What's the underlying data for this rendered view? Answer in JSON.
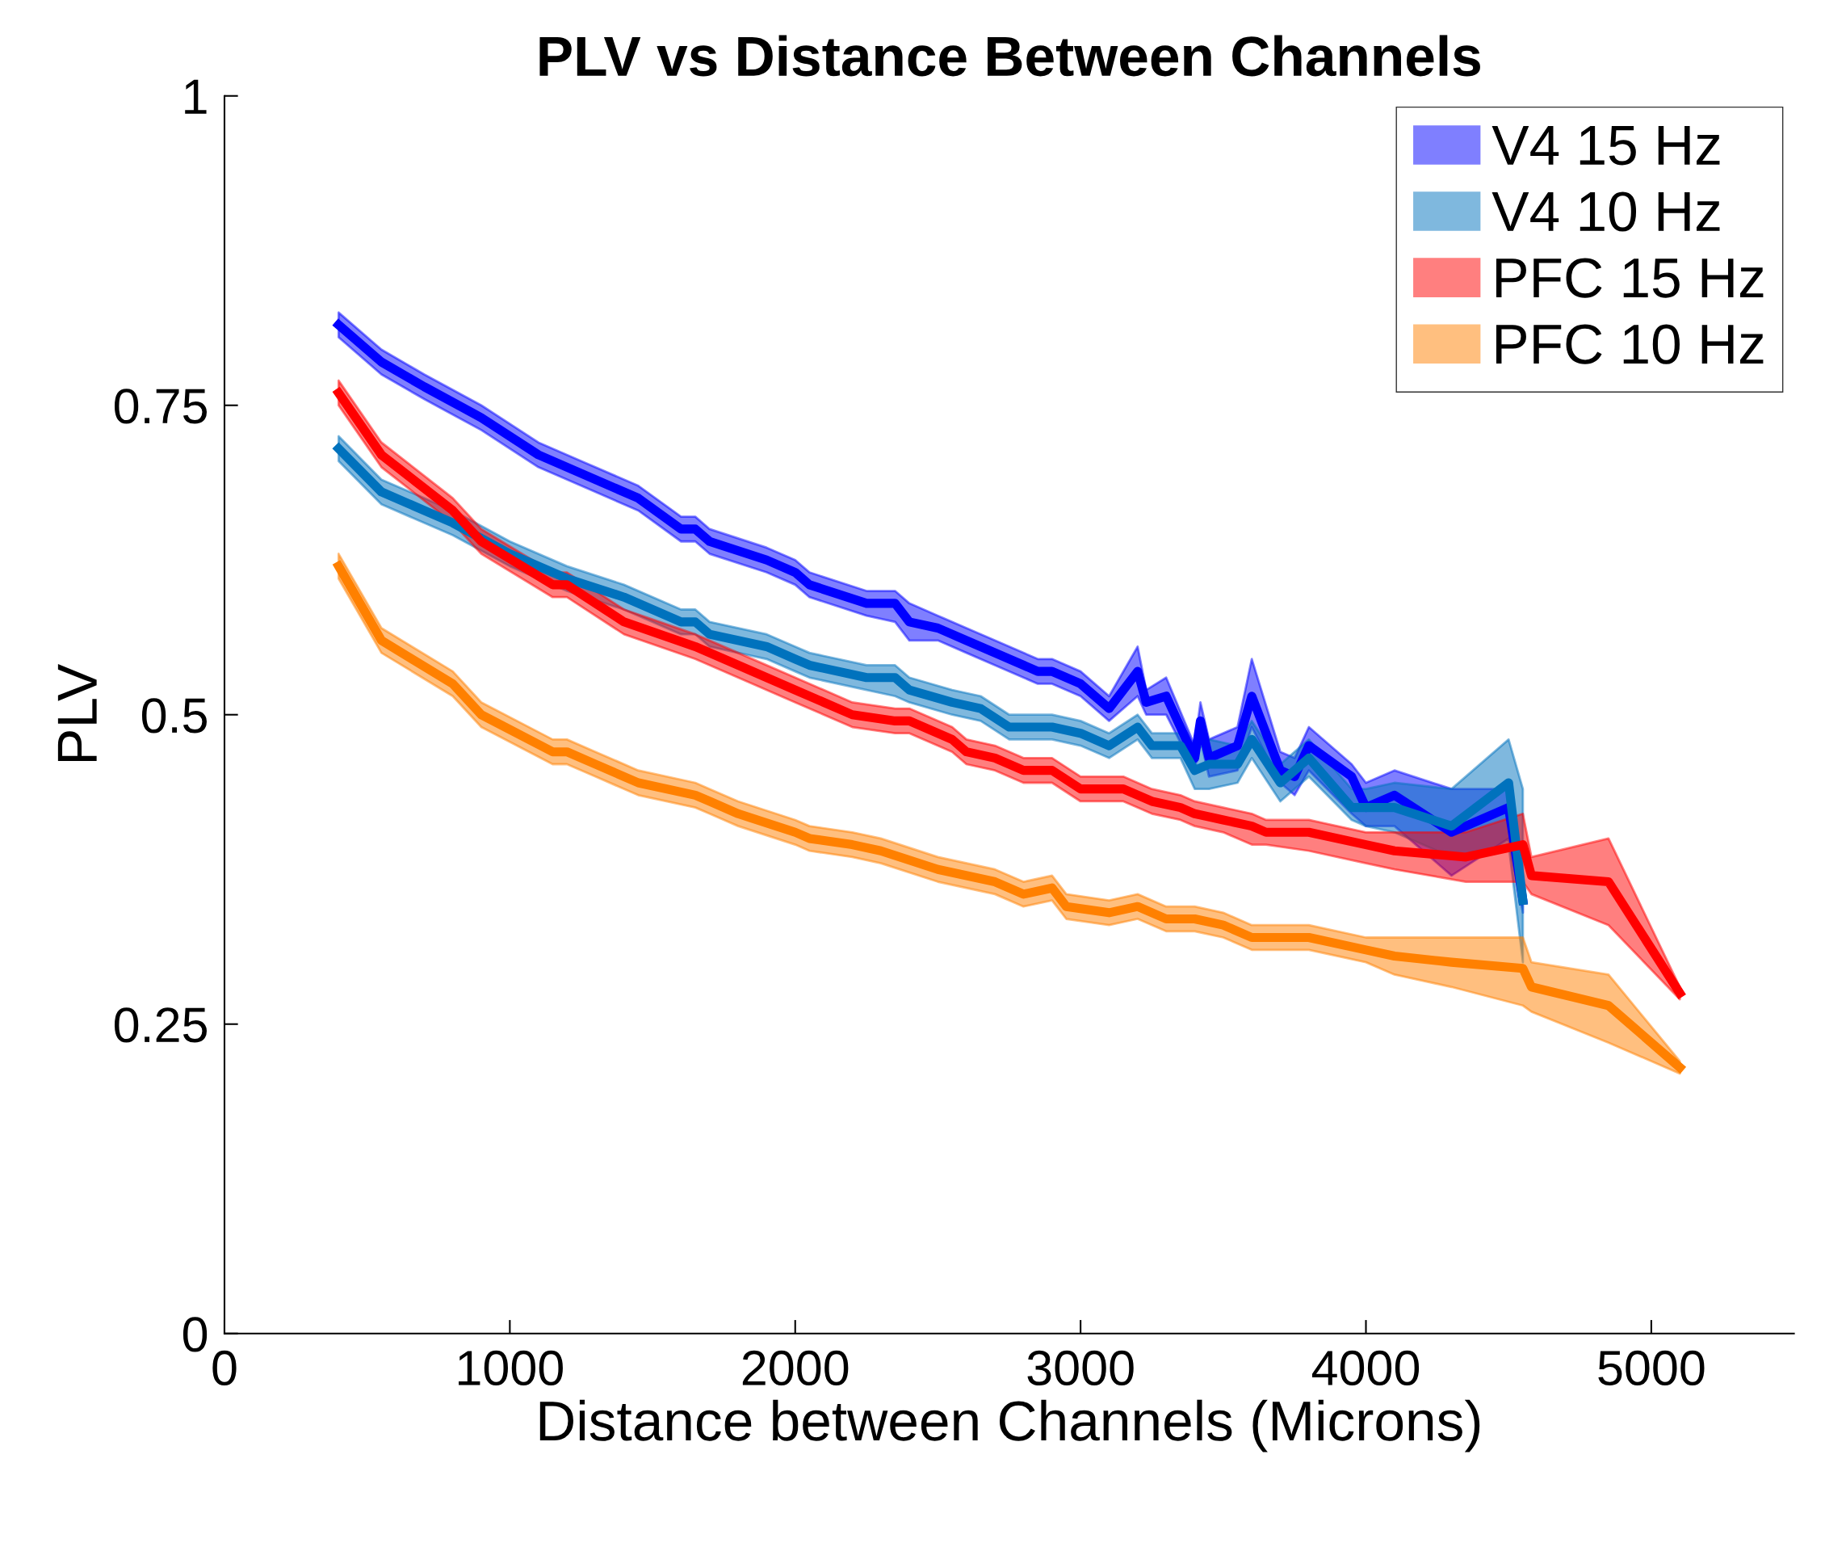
{
  "chart_data": {
    "type": "line",
    "title": "PLV vs Distance Between Channels",
    "xlabel": "Distance between Channels (Microns)",
    "ylabel": "PLV",
    "xlim": [
      0,
      5500
    ],
    "xticks": [
      0,
      1000,
      2000,
      3000,
      4000,
      5000
    ],
    "ylim": [
      0,
      1
    ],
    "yticks": [
      0,
      0.25,
      0.5,
      0.75,
      1
    ],
    "grid": false,
    "legend": "top right",
    "line_style": "solid",
    "marker": "none",
    "series": [
      {
        "name": "V4 15 Hz",
        "color": "#0000ff",
        "x": [
          400,
          550,
          700,
          900,
          1100,
          1250,
          1450,
          1600,
          1650,
          1700,
          1900,
          2000,
          2050,
          2250,
          2350,
          2400,
          2500,
          2600,
          2700,
          2850,
          2900,
          3000,
          3100,
          3200,
          3230,
          3300,
          3400,
          3420,
          3450,
          3550,
          3600,
          3700,
          3750,
          3800,
          3950,
          4000,
          4100,
          4300,
          4500,
          4550
        ],
        "values": [
          0.815,
          0.785,
          0.765,
          0.74,
          0.71,
          0.695,
          0.675,
          0.65,
          0.65,
          0.64,
          0.625,
          0.615,
          0.605,
          0.59,
          0.59,
          0.575,
          0.57,
          0.56,
          0.55,
          0.535,
          0.535,
          0.525,
          0.505,
          0.535,
          0.51,
          0.515,
          0.465,
          0.495,
          0.465,
          0.475,
          0.515,
          0.455,
          0.45,
          0.475,
          0.45,
          0.425,
          0.435,
          0.405,
          0.425,
          0.35
        ],
        "lower": [
          0.805,
          0.775,
          0.755,
          0.73,
          0.7,
          0.685,
          0.665,
          0.64,
          0.64,
          0.63,
          0.615,
          0.605,
          0.595,
          0.58,
          0.575,
          0.56,
          0.56,
          0.55,
          0.54,
          0.525,
          0.525,
          0.515,
          0.495,
          0.515,
          0.5,
          0.5,
          0.455,
          0.48,
          0.45,
          0.455,
          0.49,
          0.445,
          0.435,
          0.455,
          0.42,
          0.41,
          0.41,
          0.37,
          0.4,
          0.34
        ],
        "upper": [
          0.825,
          0.795,
          0.775,
          0.75,
          0.72,
          0.705,
          0.685,
          0.66,
          0.66,
          0.65,
          0.635,
          0.625,
          0.615,
          0.6,
          0.6,
          0.59,
          0.58,
          0.57,
          0.56,
          0.545,
          0.545,
          0.535,
          0.515,
          0.555,
          0.52,
          0.53,
          0.475,
          0.51,
          0.48,
          0.49,
          0.545,
          0.47,
          0.465,
          0.49,
          0.46,
          0.445,
          0.455,
          0.44,
          0.44,
          0.36
        ]
      },
      {
        "name": "V4 10 Hz",
        "color": "#0072bd",
        "x": [
          400,
          550,
          800,
          1000,
          1200,
          1400,
          1600,
          1650,
          1700,
          1900,
          2000,
          2050,
          2250,
          2350,
          2400,
          2550,
          2650,
          2750,
          2900,
          3000,
          3100,
          3200,
          3250,
          3350,
          3400,
          3450,
          3550,
          3600,
          3700,
          3800,
          3950,
          4000,
          4100,
          4300,
          4500,
          4550
        ],
        "values": [
          0.715,
          0.68,
          0.655,
          0.63,
          0.61,
          0.595,
          0.575,
          0.575,
          0.565,
          0.555,
          0.545,
          0.54,
          0.53,
          0.53,
          0.52,
          0.51,
          0.505,
          0.49,
          0.49,
          0.485,
          0.475,
          0.49,
          0.475,
          0.475,
          0.455,
          0.46,
          0.46,
          0.48,
          0.445,
          0.465,
          0.425,
          0.425,
          0.425,
          0.41,
          0.445,
          0.35
        ],
        "lower": [
          0.705,
          0.67,
          0.645,
          0.62,
          0.6,
          0.585,
          0.565,
          0.565,
          0.555,
          0.545,
          0.535,
          0.53,
          0.52,
          0.515,
          0.51,
          0.5,
          0.495,
          0.48,
          0.48,
          0.475,
          0.465,
          0.48,
          0.465,
          0.465,
          0.44,
          0.44,
          0.445,
          0.465,
          0.43,
          0.45,
          0.415,
          0.41,
          0.405,
          0.385,
          0.395,
          0.3
        ],
        "upper": [
          0.725,
          0.69,
          0.665,
          0.64,
          0.62,
          0.605,
          0.585,
          0.585,
          0.575,
          0.565,
          0.555,
          0.55,
          0.54,
          0.54,
          0.53,
          0.52,
          0.515,
          0.5,
          0.5,
          0.495,
          0.485,
          0.5,
          0.485,
          0.485,
          0.47,
          0.48,
          0.475,
          0.495,
          0.46,
          0.48,
          0.44,
          0.44,
          0.445,
          0.44,
          0.48,
          0.44
        ]
      },
      {
        "name": "PFC 15 Hz",
        "color": "#ff0000",
        "x": [
          400,
          550,
          800,
          900,
          1150,
          1200,
          1400,
          1650,
          1800,
          2000,
          2200,
          2350,
          2400,
          2550,
          2600,
          2700,
          2800,
          2900,
          3000,
          3150,
          3250,
          3350,
          3400,
          3500,
          3600,
          3650,
          3800,
          4000,
          4100,
          4350,
          4550,
          4580,
          4850,
          5100
        ],
        "values": [
          0.76,
          0.71,
          0.665,
          0.64,
          0.605,
          0.605,
          0.575,
          0.555,
          0.54,
          0.52,
          0.5,
          0.495,
          0.495,
          0.48,
          0.47,
          0.465,
          0.455,
          0.455,
          0.44,
          0.44,
          0.43,
          0.425,
          0.42,
          0.415,
          0.41,
          0.405,
          0.405,
          0.395,
          0.39,
          0.385,
          0.395,
          0.37,
          0.365,
          0.275
        ],
        "lower": [
          0.75,
          0.7,
          0.655,
          0.63,
          0.595,
          0.595,
          0.565,
          0.545,
          0.53,
          0.51,
          0.49,
          0.485,
          0.485,
          0.47,
          0.46,
          0.455,
          0.445,
          0.445,
          0.43,
          0.43,
          0.42,
          0.415,
          0.41,
          0.405,
          0.395,
          0.395,
          0.39,
          0.38,
          0.375,
          0.365,
          0.365,
          0.355,
          0.33,
          0.27
        ],
        "upper": [
          0.77,
          0.72,
          0.675,
          0.65,
          0.615,
          0.615,
          0.585,
          0.565,
          0.55,
          0.53,
          0.51,
          0.505,
          0.505,
          0.49,
          0.48,
          0.475,
          0.465,
          0.465,
          0.45,
          0.45,
          0.44,
          0.435,
          0.43,
          0.425,
          0.42,
          0.415,
          0.415,
          0.405,
          0.405,
          0.405,
          0.42,
          0.385,
          0.4,
          0.28
        ]
      },
      {
        "name": "PFC 10 Hz",
        "color": "#ff8000",
        "x": [
          400,
          550,
          800,
          900,
          1150,
          1200,
          1300,
          1450,
          1650,
          1700,
          1800,
          2000,
          2050,
          2200,
          2300,
          2500,
          2700,
          2800,
          2900,
          2950,
          3100,
          3200,
          3300,
          3400,
          3500,
          3600,
          3700,
          3800,
          4000,
          4100,
          4300,
          4550,
          4580,
          4850,
          5100
        ],
        "values": [
          0.62,
          0.56,
          0.525,
          0.5,
          0.47,
          0.47,
          0.46,
          0.445,
          0.435,
          0.43,
          0.42,
          0.405,
          0.4,
          0.395,
          0.39,
          0.375,
          0.365,
          0.355,
          0.36,
          0.345,
          0.34,
          0.345,
          0.335,
          0.335,
          0.33,
          0.32,
          0.32,
          0.32,
          0.31,
          0.305,
          0.3,
          0.295,
          0.28,
          0.265,
          0.215
        ],
        "lower": [
          0.61,
          0.55,
          0.515,
          0.49,
          0.46,
          0.46,
          0.45,
          0.435,
          0.425,
          0.42,
          0.41,
          0.395,
          0.39,
          0.385,
          0.38,
          0.365,
          0.355,
          0.345,
          0.35,
          0.335,
          0.33,
          0.335,
          0.325,
          0.325,
          0.32,
          0.31,
          0.31,
          0.31,
          0.3,
          0.29,
          0.28,
          0.265,
          0.26,
          0.235,
          0.21
        ],
        "upper": [
          0.63,
          0.57,
          0.535,
          0.51,
          0.48,
          0.48,
          0.47,
          0.455,
          0.445,
          0.44,
          0.43,
          0.415,
          0.41,
          0.405,
          0.4,
          0.385,
          0.375,
          0.365,
          0.37,
          0.355,
          0.35,
          0.355,
          0.345,
          0.345,
          0.34,
          0.33,
          0.33,
          0.33,
          0.32,
          0.32,
          0.32,
          0.32,
          0.3,
          0.29,
          0.22
        ]
      }
    ]
  }
}
